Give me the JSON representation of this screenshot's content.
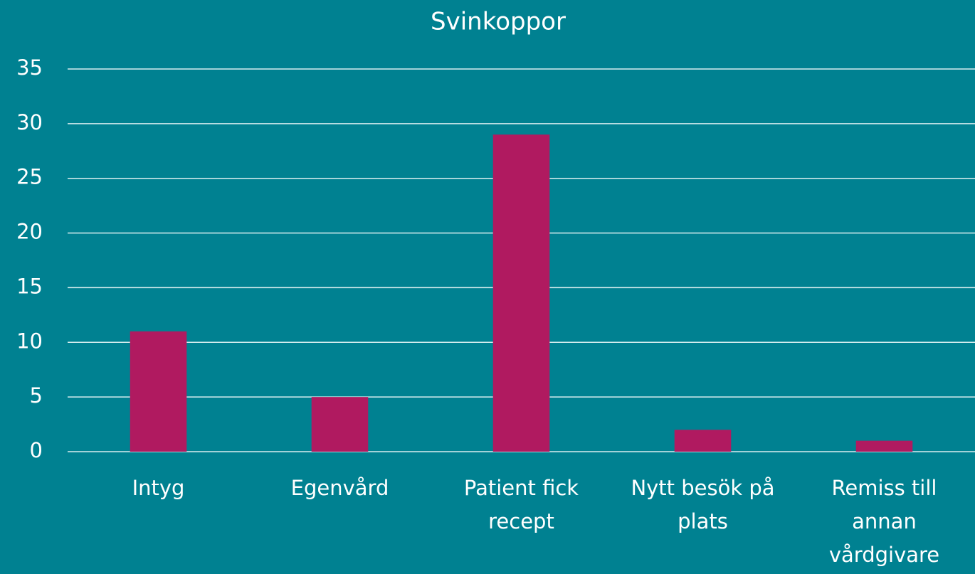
{
  "chart_data": {
    "type": "bar",
    "title": "Svinkoppor",
    "categories": [
      "Intyg",
      "Egenvård",
      "Patient fick recept",
      "Nytt besök på plats",
      "Remiss till annan vårdgivare"
    ],
    "values": [
      11,
      5,
      29,
      2,
      1
    ],
    "color": "#b01a60",
    "ylim": [
      0,
      35
    ],
    "yticks": [
      0,
      5,
      10,
      15,
      20,
      25,
      30,
      35
    ],
    "grid": true
  }
}
